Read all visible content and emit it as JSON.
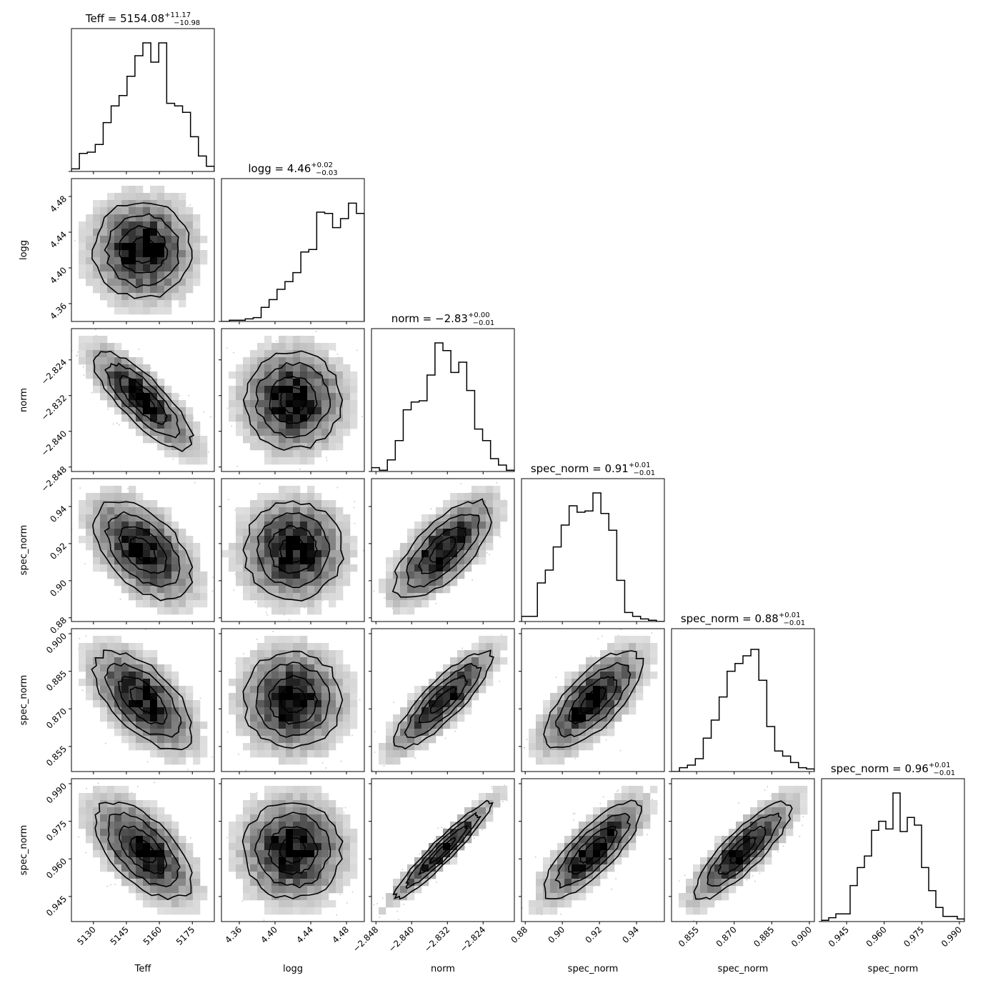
{
  "figure": {
    "type": "corner",
    "parameters": [
      {
        "label": "Teff",
        "title_name": "Teff",
        "median": "5154.08",
        "plus": "+11.17",
        "minus": "−10.98",
        "range": [
          5120,
          5185
        ],
        "ticks": [
          "5130",
          "5145",
          "5160",
          "5175"
        ],
        "tick_values": [
          5130,
          5145,
          5160,
          5175
        ],
        "hist": [
          0.02,
          0.14,
          0.15,
          0.21,
          0.38,
          0.51,
          0.59,
          0.74,
          0.9,
          1.0,
          0.85,
          1.0,
          0.53,
          0.51,
          0.46,
          0.27,
          0.12,
          0.04
        ]
      },
      {
        "label": "logg",
        "title_name": "logg",
        "median": "4.46",
        "plus": "+0.02",
        "minus": "−0.03",
        "range": [
          4.34,
          4.5
        ],
        "ticks": [
          "4.36",
          "4.40",
          "4.44",
          "4.48"
        ],
        "tick_values": [
          4.36,
          4.4,
          4.44,
          4.48
        ],
        "hist": [
          0.0,
          0.01,
          0.01,
          0.02,
          0.03,
          0.11,
          0.17,
          0.25,
          0.31,
          0.38,
          0.54,
          0.56,
          0.85,
          0.84,
          0.73,
          0.8,
          0.92,
          0.84
        ]
      },
      {
        "label": "norm",
        "title_name": "norm",
        "median": "−2.83",
        "plus": "+0.00",
        "minus": "−0.01",
        "range": [
          -2.849,
          -2.817
        ],
        "ticks": [
          "−2.848",
          "−2.840",
          "−2.832",
          "−2.824"
        ],
        "tick_values": [
          -2.848,
          -2.84,
          -2.832,
          -2.824
        ],
        "hist": [
          0.03,
          0.01,
          0.09,
          0.24,
          0.48,
          0.54,
          0.55,
          0.75,
          1.0,
          0.94,
          0.77,
          0.85,
          0.63,
          0.33,
          0.24,
          0.1,
          0.05,
          0.01
        ]
      },
      {
        "label": "spec_norm",
        "title_name": "spec_norm",
        "median": "0.91",
        "plus": "+0.01",
        "minus": "−0.01",
        "range": [
          0.878,
          0.955
        ],
        "ticks": [
          "0.88",
          "0.90",
          "0.92",
          "0.94"
        ],
        "tick_values": [
          0.88,
          0.9,
          0.92,
          0.94
        ],
        "hist": [
          0.04,
          0.04,
          0.3,
          0.4,
          0.58,
          0.75,
          0.9,
          0.85,
          0.86,
          1.0,
          0.84,
          0.71,
          0.32,
          0.07,
          0.04,
          0.02,
          0.01,
          0.0
        ]
      },
      {
        "label": "spec_norm",
        "title_name": "spec_norm",
        "median": "0.88",
        "plus": "+0.01",
        "minus": "−0.01",
        "range": [
          0.845,
          0.902
        ],
        "ticks": [
          "0.855",
          "0.870",
          "0.885",
          "0.900"
        ],
        "tick_values": [
          0.855,
          0.87,
          0.885,
          0.9
        ],
        "hist": [
          0.0,
          0.03,
          0.05,
          0.1,
          0.26,
          0.4,
          0.58,
          0.78,
          0.84,
          0.9,
          0.95,
          0.71,
          0.35,
          0.16,
          0.12,
          0.07,
          0.03,
          0.02
        ]
      },
      {
        "label": "spec_norm",
        "title_name": "spec_norm",
        "median": "0.96",
        "plus": "+0.01",
        "minus": "−0.01",
        "range": [
          0.935,
          0.992
        ],
        "ticks": [
          "0.945",
          "0.960",
          "0.975",
          "0.990"
        ],
        "tick_values": [
          0.945,
          0.96,
          0.975,
          0.99
        ],
        "hist": [
          0.01,
          0.03,
          0.06,
          0.06,
          0.28,
          0.42,
          0.51,
          0.71,
          0.78,
          0.72,
          1.0,
          0.7,
          0.81,
          0.75,
          0.42,
          0.24,
          0.11,
          0.04,
          0.04,
          0.02
        ]
      }
    ]
  },
  "chart_data": [
    {
      "type": "histogram",
      "parameter": "Teff",
      "title": "Teff = 5154.08 (+11.17, −10.98)"
    },
    {
      "type": "histogram",
      "parameter": "logg",
      "title": "logg = 4.46 (+0.02, −0.03)"
    },
    {
      "type": "histogram",
      "parameter": "norm",
      "title": "norm = −2.83 (+0.00, −0.01)"
    },
    {
      "type": "histogram",
      "parameter": "spec_norm",
      "title": "spec_norm = 0.91 (+0.01, −0.01)"
    },
    {
      "type": "histogram",
      "parameter": "spec_norm",
      "title": "spec_norm = 0.88 (+0.01, −0.01)"
    },
    {
      "type": "histogram",
      "parameter": "spec_norm",
      "title": "spec_norm = 0.96 (+0.01, −0.01)"
    }
  ]
}
